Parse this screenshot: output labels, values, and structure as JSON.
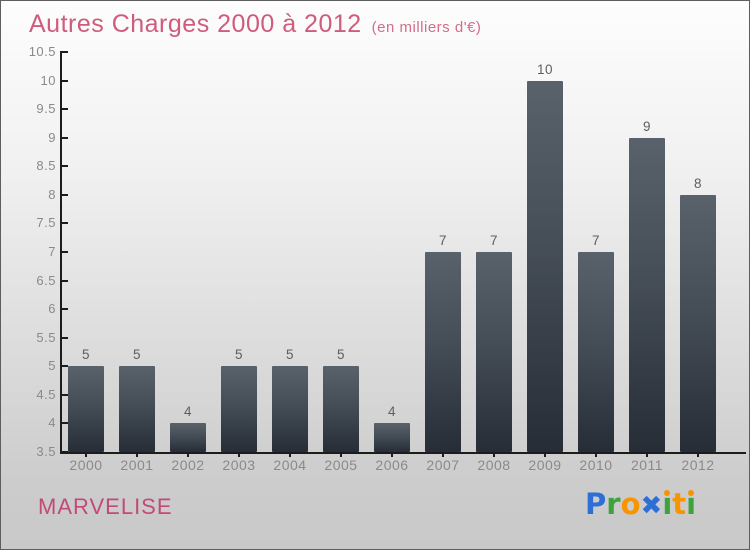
{
  "header": {
    "title": "Autres Charges 2000 à 2012",
    "subtitle": "(en milliers d'€)"
  },
  "footer": {
    "company": "MARVELISE",
    "logo": {
      "text": "Proxiti",
      "letters": [
        {
          "ch": "P",
          "color": "#2e6fd6"
        },
        {
          "ch": "r",
          "color": "#3da43c"
        },
        {
          "ch": "o",
          "color": "#f79400"
        },
        {
          "ch": "x",
          "glyph": "✖",
          "color": "#2e6fd6",
          "big": true
        },
        {
          "ch": "i",
          "color": "#3da43c",
          "dot": "#f79400"
        },
        {
          "ch": "t",
          "color": "#f79400"
        },
        {
          "ch": "i",
          "color": "#3da43c",
          "dot": "#f79400"
        }
      ]
    }
  },
  "colors": {
    "title_pink": "#cf5c7c",
    "company_pink": "#c34a77",
    "bar_top": "#59626b",
    "bar_bottom": "#262d36",
    "axis": "#1c1c1c",
    "tick_label_gray": "#8a8a8a",
    "value_label_gray": "#5e5e5e",
    "background_top": "#fdfdfd",
    "background_bottom": "#c9c9c9"
  },
  "chart_data": {
    "type": "bar",
    "title": "Autres Charges 2000 à 2012",
    "subtitle": "(en milliers d'€)",
    "xlabel": "",
    "ylabel": "",
    "categories": [
      "2000",
      "2001",
      "2002",
      "2003",
      "2004",
      "2005",
      "2006",
      "2007",
      "2008",
      "2009",
      "2010",
      "2011",
      "2012"
    ],
    "values": [
      5,
      5,
      4,
      5,
      5,
      5,
      4,
      7,
      7,
      10,
      7,
      9,
      8
    ],
    "ylim": [
      3.5,
      10.5
    ],
    "ytick_step": 0.5,
    "grid": false,
    "legend": false,
    "bar_labels_shown": true
  }
}
